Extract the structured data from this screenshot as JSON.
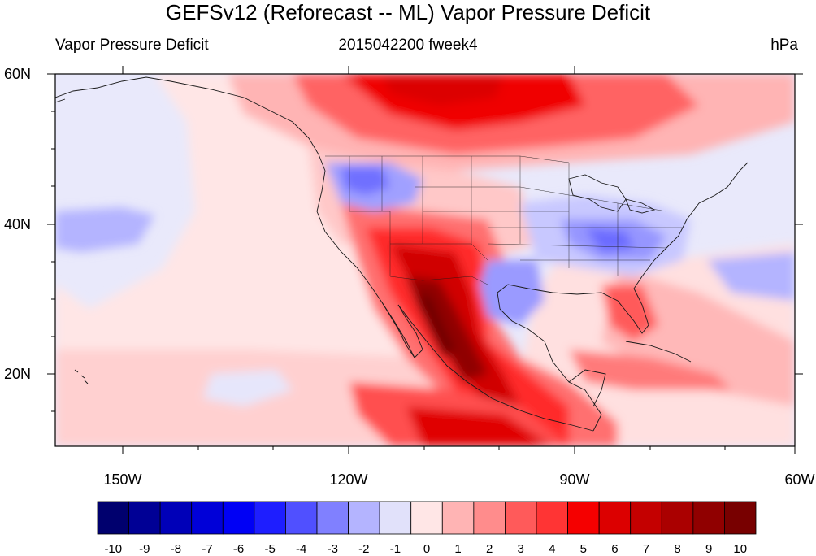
{
  "title": "GEFSv12 (Reforecast -- ML) Vapor Pressure Deficit",
  "subtitle_left": "Vapor Pressure Deficit",
  "subtitle_center": "2015042200 fweek4",
  "subtitle_right": "hPa",
  "lat_labels": [
    "60N",
    "40N",
    "20N"
  ],
  "lon_labels": [
    "150W",
    "120W",
    "90W",
    "60W"
  ],
  "colorbar": {
    "labels": [
      "-10",
      "-9",
      "-8",
      "-7",
      "-6",
      "-5",
      "-4",
      "-3",
      "-2",
      "-1",
      "0",
      "1",
      "2",
      "3",
      "4",
      "5",
      "6",
      "7",
      "8",
      "9",
      "10"
    ],
    "colors": [
      "#00006e",
      "#000095",
      "#0000b8",
      "#0000d8",
      "#0000f5",
      "#1e1eff",
      "#5050ff",
      "#8080ff",
      "#b4b4ff",
      "#e1e1fa",
      "#ffe6e6",
      "#ffb4b4",
      "#ff8c8c",
      "#ff5a5a",
      "#ff3434",
      "#f50000",
      "#dc0000",
      "#c40000",
      "#aa0000",
      "#900000",
      "#780000"
    ]
  },
  "colors": {
    "land_lines": "#1a1a1a",
    "background": "#e9e9fb"
  }
}
